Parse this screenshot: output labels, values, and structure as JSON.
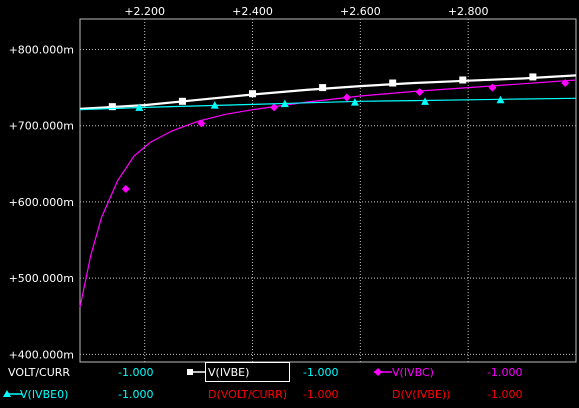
{
  "colors": {
    "background": "#000000",
    "grid": "#bdbdbd",
    "text": "#ffffff",
    "value": "#00ffff",
    "derivative": "#ff0000",
    "ivbe": "#ffffff",
    "ivbc": "#ff00ff",
    "ivbe0": "#00ffff"
  },
  "chart_data": {
    "type": "line",
    "xlim": [
      2.08,
      3.0
    ],
    "ylim": [
      0.39,
      0.84
    ],
    "x_ticks": [
      2.2,
      2.4,
      2.6,
      2.8
    ],
    "x_tick_labels": [
      "+2.200",
      "+2.400",
      "+2.600",
      "+2.800"
    ],
    "x_axis_position": "top",
    "y_ticks": [
      0.4,
      0.5,
      0.6,
      0.7,
      0.8
    ],
    "y_tick_labels": [
      "+400.000m",
      "+500.000m",
      "+600.000m",
      "+700.000m",
      "+800.000m"
    ],
    "grid": true,
    "series": [
      {
        "name": "V(IVBE)",
        "color": "#ffffff",
        "marker": "square",
        "x": [
          2.08,
          2.2,
          2.3,
          2.4,
          2.5,
          2.6,
          2.7,
          2.8,
          2.9,
          3.0
        ],
        "values": [
          0.722,
          0.727,
          0.734,
          0.741,
          0.747,
          0.752,
          0.756,
          0.759,
          0.762,
          0.766
        ],
        "markers_x": [
          2.14,
          2.27,
          2.4,
          2.53,
          2.66,
          2.79,
          2.92
        ],
        "markers_y": [
          0.725,
          0.732,
          0.742,
          0.75,
          0.756,
          0.76,
          0.764
        ]
      },
      {
        "name": "V(IVBC)",
        "color": "#ff00ff",
        "marker": "diamond",
        "x": [
          2.08,
          2.1,
          2.12,
          2.15,
          2.18,
          2.21,
          2.25,
          2.3,
          2.35,
          2.4,
          2.5,
          2.6,
          2.7,
          2.8,
          2.9,
          3.0
        ],
        "values": [
          0.462,
          0.53,
          0.58,
          0.628,
          0.66,
          0.678,
          0.693,
          0.706,
          0.715,
          0.721,
          0.731,
          0.739,
          0.745,
          0.75,
          0.755,
          0.76
        ],
        "markers_x": [
          2.165,
          2.305,
          2.44,
          2.575,
          2.71,
          2.845,
          2.98
        ],
        "markers_y": [
          0.617,
          0.703,
          0.724,
          0.737,
          0.744,
          0.75,
          0.756
        ]
      },
      {
        "name": "V(IVBE0)",
        "color": "#00ffff",
        "marker": "triangle",
        "x": [
          2.08,
          2.2,
          2.3,
          2.4,
          2.5,
          2.6,
          2.7,
          2.8,
          2.9,
          3.0
        ],
        "values": [
          0.721,
          0.724,
          0.726,
          0.728,
          0.73,
          0.732,
          0.733,
          0.734,
          0.735,
          0.736
        ],
        "markers_x": [
          2.19,
          2.33,
          2.46,
          2.59,
          2.72,
          2.86
        ],
        "markers_y": [
          0.724,
          0.727,
          0.729,
          0.731,
          0.732,
          0.734
        ]
      }
    ]
  },
  "legend": {
    "row1": {
      "axis_name": "VOLT/CURR",
      "axis_value": "-1.000",
      "ivbe_name": "V(IVBE)",
      "ivbe_value": "-1.000",
      "ivbc_name": "V(IVBC)",
      "ivbc_value": "-1.000"
    },
    "row2": {
      "ivbe0_name": "V(IVBE0)",
      "ivbe0_value": "-1.000",
      "d_volt_name": "D(VOLT/CURR)",
      "d_volt_value": "-1.000",
      "d_ivbe_name": "D(V(IVBE))",
      "d_ivbe_value": "-1.000"
    }
  }
}
